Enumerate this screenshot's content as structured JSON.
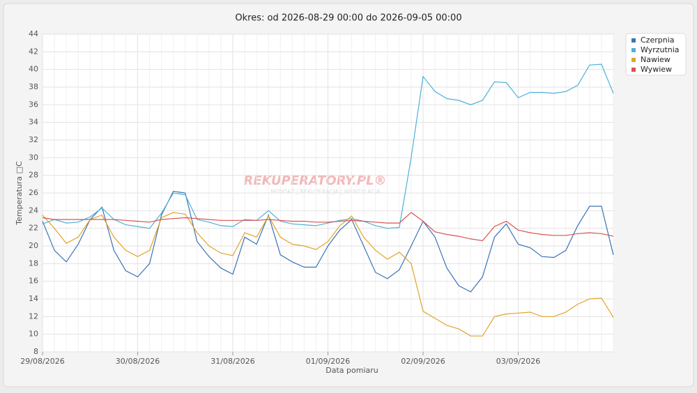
{
  "chart_data": {
    "type": "line",
    "title": "Okres: od 2026-08-29 00:00 do 2026-09-05 00:00",
    "x_label": "Data pomiaru",
    "y_label": "Temperatura □C",
    "watermark": "REKUPERATORY.PL®",
    "watermark_subtitle": "MONTAŻ | REKUPERACJA | WENTYLACJA",
    "categories": [
      "29/08/2026",
      null,
      null,
      null,
      null,
      null,
      null,
      null,
      "30/08/2026",
      null,
      null,
      null,
      null,
      null,
      null,
      null,
      "31/08/2026",
      null,
      null,
      null,
      null,
      null,
      null,
      null,
      "01/09/2026",
      null,
      null,
      null,
      null,
      null,
      null,
      null,
      "02/09/2026",
      null,
      null,
      null,
      null,
      null,
      null,
      null,
      "03/09/2026",
      null,
      null,
      null,
      null,
      null,
      null,
      null,
      null
    ],
    "series": [
      {
        "name": "Czerpnia",
        "color": "#3b74b6",
        "values": [
          22.8,
          19.5,
          18.2,
          20.2,
          23,
          24.4,
          19.5,
          17.2,
          16.5,
          18,
          23.5,
          26.2,
          26,
          20.5,
          18.8,
          17.5,
          16.8,
          21,
          20.2,
          23.5,
          19,
          18.2,
          17.6,
          17.6,
          20,
          21.8,
          23,
          20,
          17,
          16.3,
          17.3,
          20,
          22.8,
          21,
          17.5,
          15.5,
          14.8,
          16.5,
          21,
          22.5,
          20.2,
          19.8,
          18.8,
          18.7,
          19.5,
          22.3,
          24.5,
          24.5,
          19
        ]
      },
      {
        "name": "Wyrzutnia",
        "color": "#4db0d8",
        "values": [
          22.5,
          23,
          22.6,
          22.7,
          23.3,
          24.3,
          23,
          22.4,
          22.2,
          22,
          23.7,
          26,
          25.8,
          23,
          22.7,
          22.3,
          22.2,
          23,
          22.9,
          24,
          22.8,
          22.5,
          22.4,
          22.3,
          22.6,
          22.9,
          23.1,
          22.8,
          22.3,
          22,
          22.1,
          30,
          39.2,
          37.5,
          36.7,
          36.5,
          36,
          36.5,
          38.6,
          38.5,
          36.8,
          37.4,
          37.4,
          37.3,
          37.5,
          38.2,
          40.5,
          40.6,
          37.3
        ]
      },
      {
        "name": "Nawiew",
        "color": "#e2a329",
        "values": [
          23.5,
          22,
          20.3,
          21,
          23,
          23.5,
          21,
          19.5,
          18.8,
          19.5,
          23.2,
          23.8,
          23.6,
          21.5,
          20,
          19.2,
          18.9,
          21.5,
          21,
          23.4,
          21,
          20.2,
          20,
          19.6,
          20.5,
          22.3,
          23.4,
          21,
          19.5,
          18.5,
          19.3,
          18,
          12.6,
          11.8,
          11,
          10.6,
          9.8,
          9.8,
          12,
          12.3,
          12.4,
          12.5,
          12,
          12,
          12.5,
          13.4,
          14,
          14.1,
          11.9
        ]
      },
      {
        "name": "Wywiew",
        "color": "#d9534f",
        "values": [
          23.2,
          23,
          23,
          23,
          23,
          23,
          23,
          22.9,
          22.8,
          22.7,
          23,
          23.1,
          23.2,
          23.1,
          23,
          22.9,
          22.9,
          22.9,
          22.9,
          23,
          22.9,
          22.8,
          22.8,
          22.7,
          22.7,
          22.8,
          22.9,
          22.8,
          22.7,
          22.6,
          22.6,
          23.8,
          22.8,
          21.6,
          21.3,
          21.1,
          20.8,
          20.6,
          22.2,
          22.8,
          21.8,
          21.5,
          21.3,
          21.2,
          21.2,
          21.4,
          21.5,
          21.4,
          21.1
        ]
      }
    ],
    "ylim": [
      8,
      44
    ],
    "yticks": [
      8,
      10,
      12,
      14,
      16,
      18,
      20,
      22,
      24,
      26,
      28,
      30,
      32,
      34,
      36,
      38,
      40,
      42,
      44
    ],
    "grid": true
  }
}
